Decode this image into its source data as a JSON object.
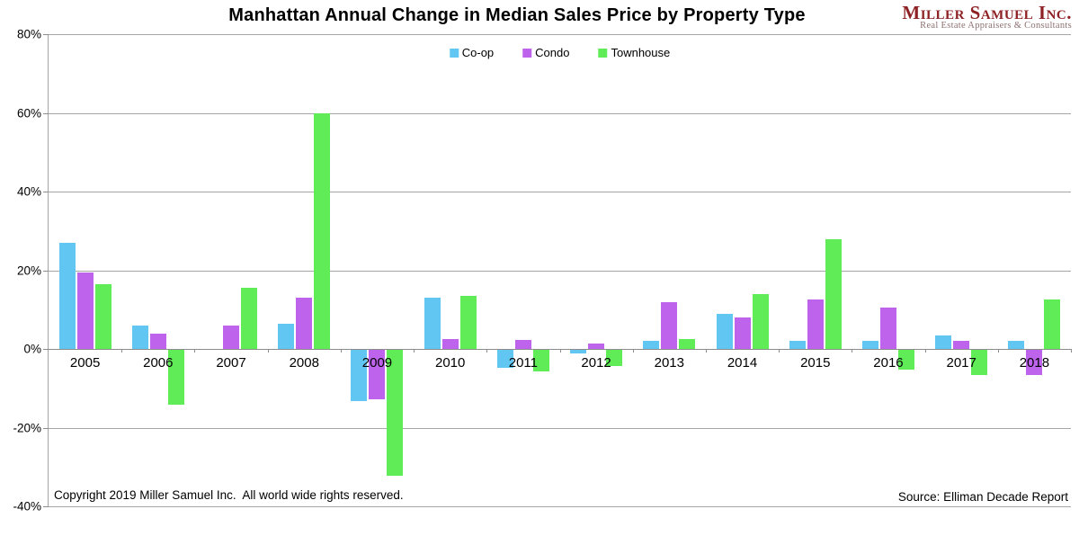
{
  "logo": {
    "name": "Miller Samuel Inc.",
    "tagline": "Real Estate Appraisers & Consultants"
  },
  "footer": {
    "copyright": "Copyright 2019 Miller Samuel Inc.  All world wide rights reserved.",
    "source": "Source: Elliman Decade Report"
  },
  "chart_data": {
    "type": "bar",
    "title": "Manhattan Annual Change in Median Sales Price by Property Type",
    "categories": [
      "2005",
      "2006",
      "2007",
      "2008",
      "2009",
      "2010",
      "2011",
      "2012",
      "2013",
      "2014",
      "2015",
      "2016",
      "2017",
      "2018"
    ],
    "series": [
      {
        "name": "Co-op",
        "color": "#61C7F2",
        "values": [
          27,
          6,
          0,
          6.5,
          -13,
          13,
          -4.5,
          -1,
          2,
          9,
          2,
          2,
          3.5,
          2
        ]
      },
      {
        "name": "Condo",
        "color": "#BD63EC",
        "values": [
          19.5,
          4,
          6,
          13,
          -12.5,
          2.5,
          2.2,
          1.3,
          12,
          8,
          12.5,
          10.5,
          2,
          -6.5
        ]
      },
      {
        "name": "Townhouse",
        "color": "#5FEC57",
        "values": [
          16.5,
          -14,
          15.5,
          60,
          -32,
          13.5,
          -5.5,
          -4,
          2.5,
          14,
          28,
          -5,
          -6.5,
          12.5
        ]
      }
    ],
    "xlabel": "",
    "ylabel": "",
    "y_ticks": [
      "80%",
      "60%",
      "40%",
      "20%",
      "0%",
      "-20%",
      "-40%"
    ],
    "ylim": [
      -40,
      80
    ],
    "grid": true,
    "legend_position": "top-center"
  }
}
